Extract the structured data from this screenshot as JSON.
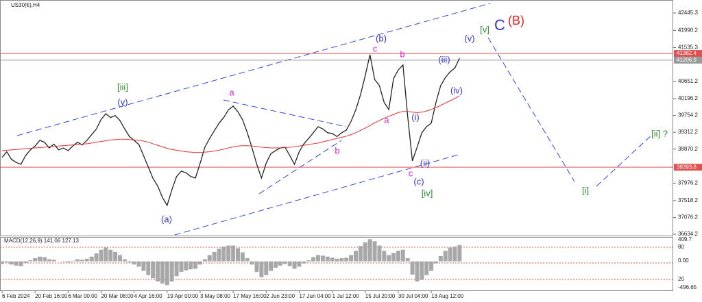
{
  "chart_data": {
    "type": "line",
    "title": "US30(€),H4",
    "categories": [
      "6 Feb 2024",
      null,
      null,
      null,
      null,
      null,
      null,
      "20 Feb 16:00",
      null,
      null,
      null,
      null,
      null,
      null,
      "6 Mar 00:00",
      null,
      null,
      null,
      null,
      null,
      null,
      "20 Mar 08:00",
      null,
      null,
      null,
      null,
      null,
      null,
      "4 Apr 16:00",
      null,
      null,
      null,
      null,
      null,
      null,
      "19 Apr 00:00",
      null,
      null,
      null,
      null,
      null,
      null,
      "3 May 08:00",
      null,
      null,
      null,
      null,
      null,
      null,
      "17 May 16:00",
      null,
      null,
      null,
      null,
      null,
      null,
      "2 Jun 23:00",
      null,
      null,
      null,
      null,
      null,
      null,
      "17 Jun 04:00",
      null,
      null,
      null,
      null,
      null,
      null,
      "1 Jul 12:00",
      null,
      null,
      null,
      null,
      null,
      null,
      "15 Jul 20:00",
      null,
      null,
      null,
      null,
      null,
      null,
      "30 Jul 04:00",
      null,
      null,
      null,
      null,
      null,
      null,
      "13 Aug 12:00",
      null,
      null,
      null,
      null,
      null,
      null
    ],
    "series": [
      {
        "color": "#222222",
        "values": [
          38650,
          38800,
          38600,
          38520,
          38470,
          38700,
          38850,
          38950,
          39100,
          39050,
          38900,
          39000,
          38850,
          38900,
          38830,
          38950,
          39050,
          38980,
          39100,
          39250,
          39400,
          39650,
          39800,
          39700,
          39750,
          39620,
          39400,
          39200,
          39100,
          38990,
          38700,
          38400,
          38100,
          37900,
          37600,
          37390,
          37800,
          38150,
          38290,
          38250,
          38150,
          38110,
          38500,
          38920,
          39150,
          39350,
          39550,
          39700,
          39900,
          40000,
          39850,
          39640,
          39300,
          38900,
          38470,
          38110,
          38500,
          38750,
          38830,
          38900,
          38920,
          38700,
          38470,
          38800,
          39010,
          39150,
          39300,
          39460,
          39400,
          39300,
          39280,
          39200,
          39300,
          39370,
          39600,
          39900,
          40300,
          40800,
          41350,
          40700,
          40540,
          40100,
          39910,
          40720,
          40950,
          41080,
          39730,
          38560,
          38920,
          39300,
          39460,
          39550,
          40100,
          40540,
          40750,
          40900,
          41000,
          41260
        ]
      },
      {
        "color": "#e03030",
        "values": [
          38830,
          38840,
          38850,
          38860,
          38870,
          38880,
          38890,
          38900,
          38910,
          38920,
          38930,
          38940,
          38950,
          38960,
          38970,
          38980,
          38990,
          39000,
          39010,
          39030,
          39050,
          39070,
          39090,
          39110,
          39120,
          39130,
          39130,
          39120,
          39110,
          39100,
          39080,
          39050,
          39010,
          38970,
          38930,
          38890,
          38860,
          38840,
          38820,
          38800,
          38790,
          38780,
          38780,
          38790,
          38800,
          38820,
          38840,
          38870,
          38900,
          38930,
          38950,
          38960,
          38960,
          38950,
          38940,
          38920,
          38910,
          38900,
          38900,
          38900,
          38910,
          38920,
          38930,
          38950,
          38970,
          38990,
          39010,
          39030,
          39060,
          39090,
          39120,
          39150,
          39180,
          39210,
          39250,
          39300,
          39360,
          39420,
          39490,
          39560,
          39620,
          39680,
          39730,
          39780,
          39830,
          39860,
          39860,
          39840,
          39830,
          39840,
          39870,
          39910,
          39960,
          40020,
          40080,
          40140,
          40200,
          40270
        ]
      }
    ],
    "ylim": [
      36580,
      42787
    ],
    "yticks": [
      42445.3,
      41990.2,
      41535.3,
      40651.2,
      40196.2,
      39754.2,
      39312.2,
      38870.2,
      37976.2,
      37518.2,
      37076.2,
      36634.2
    ],
    "levels": [
      {
        "value": 41382.4,
        "color": "#e05050"
      },
      {
        "value": 41206.9,
        "color": "#9a9a9a"
      },
      {
        "value": 38393.8,
        "color": "#e05050"
      }
    ],
    "annotations": [
      {
        "text": "[iii]",
        "color": "#2e8b2e"
      },
      {
        "text": "(v)",
        "color": "#3333cc"
      },
      {
        "text": "(a)",
        "color": "#3333cc"
      },
      {
        "text": "a",
        "color": "#e020d0"
      },
      {
        "text": "b",
        "color": "#e020d0"
      },
      {
        "text": "(b)",
        "color": "#3333cc"
      },
      {
        "text": "c",
        "color": "#e020d0"
      },
      {
        "text": "b",
        "color": "#e020d0"
      },
      {
        "text": "a",
        "color": "#e020d0"
      },
      {
        "text": "(i)",
        "color": "#3333cc"
      },
      {
        "text": "(ii)",
        "color": "#3333cc"
      },
      {
        "text": "c",
        "color": "#e020d0"
      },
      {
        "text": "(c)",
        "color": "#3333cc"
      },
      {
        "text": "[iv]",
        "color": "#2e8b2e"
      },
      {
        "text": "(iii)",
        "color": "#3333cc"
      },
      {
        "text": "(iv)",
        "color": "#3333cc"
      },
      {
        "text": "(v)",
        "color": "#3333cc"
      },
      {
        "text": "[v]",
        "color": "#2e8b2e"
      },
      {
        "text": "C",
        "color": "#3333cc"
      },
      {
        "text": "(B)",
        "color": "#e02020"
      },
      {
        "text": "[i]",
        "color": "#2e8b2e"
      },
      {
        "text": "[ii] ?",
        "color": "#2e8b2e"
      }
    ],
    "macd": {
      "title": "MACD(12,26,9) 141.06 127.13",
      "color": "#a8a8a8",
      "ylim": [
        -561,
        449
      ],
      "axis_labels": [
        "409.7",
        "80",
        "0.00",
        "20",
        "-496.65"
      ],
      "values": [
        -50,
        -20,
        -60,
        -80,
        -90,
        -30,
        20,
        60,
        90,
        80,
        40,
        30,
        0,
        -10,
        -20,
        10,
        40,
        30,
        50,
        90,
        150,
        220,
        260,
        220,
        180,
        120,
        40,
        -20,
        -60,
        -100,
        -180,
        -260,
        -320,
        -380,
        -420,
        -450,
        -380,
        -280,
        -200,
        -170,
        -150,
        -140,
        -60,
        40,
        120,
        180,
        240,
        280,
        300,
        300,
        250,
        170,
        60,
        -60,
        -200,
        -300,
        -260,
        -180,
        -120,
        -80,
        -50,
        -90,
        -140,
        -100,
        -40,
        20,
        80,
        120,
        110,
        90,
        70,
        50,
        60,
        70,
        120,
        200,
        290,
        360,
        420,
        380,
        300,
        200,
        120,
        160,
        200,
        220,
        60,
        -250,
        -380,
        -350,
        -260,
        -180,
        -40,
        100,
        200,
        260,
        280,
        310
      ]
    }
  }
}
